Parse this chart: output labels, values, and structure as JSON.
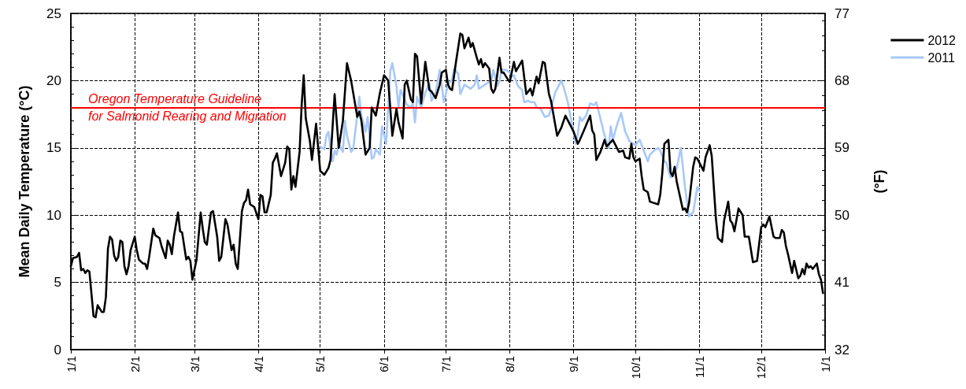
{
  "chart_data": {
    "type": "line",
    "ylabel": "Mean Daily Temperature (°C)",
    "y2label": "(°F)",
    "xlim": [
      "2012-01-01",
      "2013-01-01"
    ],
    "xticks": [
      {
        "value": "2012-01-01",
        "label": "1/1"
      },
      {
        "value": "2012-02-01",
        "label": "2/1"
      },
      {
        "value": "2012-03-01",
        "label": "3/1"
      },
      {
        "value": "2012-04-01",
        "label": "4/1"
      },
      {
        "value": "2012-05-01",
        "label": "5/1"
      },
      {
        "value": "2012-06-01",
        "label": "6/1"
      },
      {
        "value": "2012-07-01",
        "label": "7/1"
      },
      {
        "value": "2012-08-01",
        "label": "8/1"
      },
      {
        "value": "2012-09-01",
        "label": "9/1"
      },
      {
        "value": "2012-10-01",
        "label": "10/1"
      },
      {
        "value": "2012-11-01",
        "label": "11/1"
      },
      {
        "value": "2012-12-01",
        "label": "12/1"
      },
      {
        "value": "2013-01-01",
        "label": "1/1"
      }
    ],
    "ylim": [
      0,
      25
    ],
    "yticks": [
      0,
      5,
      10,
      15,
      20,
      25
    ],
    "y2lim": [
      32,
      77
    ],
    "y2ticks": [
      32,
      41,
      50,
      59,
      68,
      77
    ],
    "grid": true,
    "legend": "top right",
    "line_style": "solid",
    "marker": "none",
    "ref_lines": [
      {
        "axis": "y",
        "value": 18,
        "label": "Oregon Temperature Guideline\nfor Salmonid Rearing and Migration",
        "color": "#ff0000",
        "line_style": "solid"
      }
    ],
    "series": [
      {
        "name": "2012",
        "color": "#000000",
        "x": [
          "2012-01-01",
          "2012-01-02",
          "2012-01-04",
          "2012-01-05",
          "2012-01-06",
          "2012-01-07",
          "2012-01-08",
          "2012-01-09",
          "2012-01-10",
          "2012-01-12",
          "2012-01-13",
          "2012-01-14",
          "2012-01-16",
          "2012-01-17",
          "2012-01-18",
          "2012-01-19",
          "2012-01-20",
          "2012-01-21",
          "2012-01-22",
          "2012-01-23",
          "2012-01-24",
          "2012-01-25",
          "2012-01-26",
          "2012-01-27",
          "2012-01-28",
          "2012-01-29",
          "2012-01-30",
          "2012-02-01",
          "2012-02-02",
          "2012-02-03",
          "2012-02-05",
          "2012-02-06",
          "2012-02-07",
          "2012-02-08",
          "2012-02-10",
          "2012-02-11",
          "2012-02-13",
          "2012-02-14",
          "2012-02-16",
          "2012-02-17",
          "2012-02-18",
          "2012-02-19",
          "2012-02-20",
          "2012-02-22",
          "2012-02-23",
          "2012-02-24",
          "2012-02-26",
          "2012-02-27",
          "2012-02-28",
          "2012-02-29",
          "2012-03-02",
          "2012-03-04",
          "2012-03-05",
          "2012-03-06",
          "2012-03-07",
          "2012-03-09",
          "2012-03-10",
          "2012-03-12",
          "2012-03-13",
          "2012-03-14",
          "2012-03-16",
          "2012-03-17",
          "2012-03-19",
          "2012-03-20",
          "2012-03-21",
          "2012-03-22",
          "2012-03-24",
          "2012-03-25",
          "2012-03-26",
          "2012-03-27",
          "2012-03-28",
          "2012-03-30",
          "2012-04-01",
          "2012-04-02",
          "2012-04-03",
          "2012-04-04",
          "2012-04-05",
          "2012-04-07",
          "2012-04-08",
          "2012-04-09",
          "2012-04-10",
          "2012-04-12",
          "2012-04-14",
          "2012-04-15",
          "2012-04-16",
          "2012-04-17",
          "2012-04-18",
          "2012-04-19",
          "2012-04-21",
          "2012-04-22",
          "2012-04-23",
          "2012-04-24",
          "2012-04-26",
          "2012-04-27",
          "2012-04-29",
          "2012-05-01",
          "2012-05-03",
          "2012-05-05",
          "2012-05-06",
          "2012-05-08",
          "2012-05-10",
          "2012-05-12",
          "2012-05-14",
          "2012-05-16",
          "2012-05-19",
          "2012-05-20",
          "2012-05-21",
          "2012-05-23",
          "2012-05-25",
          "2012-05-26",
          "2012-05-28",
          "2012-05-30",
          "2012-06-01",
          "2012-06-03",
          "2012-06-05",
          "2012-06-07",
          "2012-06-08",
          "2012-06-10",
          "2012-06-11",
          "2012-06-12",
          "2012-06-14",
          "2012-06-15",
          "2012-06-16",
          "2012-06-17",
          "2012-06-19",
          "2012-06-21",
          "2012-06-23",
          "2012-06-24",
          "2012-06-26",
          "2012-06-28",
          "2012-06-29",
          "2012-07-01",
          "2012-07-02",
          "2012-07-03",
          "2012-07-04",
          "2012-07-06",
          "2012-07-08",
          "2012-07-09",
          "2012-07-10",
          "2012-07-12",
          "2012-07-13",
          "2012-07-14",
          "2012-07-16",
          "2012-07-17",
          "2012-07-18",
          "2012-07-19",
          "2012-07-20",
          "2012-07-22",
          "2012-07-23",
          "2012-07-24",
          "2012-07-25",
          "2012-07-27",
          "2012-07-28",
          "2012-07-29",
          "2012-07-31",
          "2012-08-01",
          "2012-08-03",
          "2012-08-04",
          "2012-08-07",
          "2012-08-09",
          "2012-08-11",
          "2012-08-12",
          "2012-08-14",
          "2012-08-15",
          "2012-08-17",
          "2012-08-18",
          "2012-08-20",
          "2012-08-21",
          "2012-08-24",
          "2012-08-26",
          "2012-08-28",
          "2012-08-31",
          "2012-09-01",
          "2012-09-03",
          "2012-09-04",
          "2012-09-06",
          "2012-09-09",
          "2012-09-10",
          "2012-09-11",
          "2012-09-12",
          "2012-09-14",
          "2012-09-16",
          "2012-09-17",
          "2012-09-20",
          "2012-09-22",
          "2012-09-23",
          "2012-09-25",
          "2012-09-26",
          "2012-09-28",
          "2012-09-29",
          "2012-09-30",
          "2012-10-01",
          "2012-10-03",
          "2012-10-04",
          "2012-10-05",
          "2012-10-07",
          "2012-10-08",
          "2012-10-12",
          "2012-10-13",
          "2012-10-14",
          "2012-10-15",
          "2012-10-17",
          "2012-10-18",
          "2012-10-19",
          "2012-10-20",
          "2012-10-21",
          "2012-10-24",
          "2012-10-25",
          "2012-10-26",
          "2012-10-27",
          "2012-10-29",
          "2012-10-30",
          "2012-10-31",
          "2012-11-03",
          "2012-11-04",
          "2012-11-06",
          "2012-11-07",
          "2012-11-09",
          "2012-11-10",
          "2012-11-12",
          "2012-11-13",
          "2012-11-15",
          "2012-11-16",
          "2012-11-17",
          "2012-11-18",
          "2012-11-20",
          "2012-11-22",
          "2012-11-23",
          "2012-11-24",
          "2012-11-25",
          "2012-11-27",
          "2012-11-29",
          "2012-12-01",
          "2012-12-02",
          "2012-12-03",
          "2012-12-05",
          "2012-12-07",
          "2012-12-08",
          "2012-12-10",
          "2012-12-11",
          "2012-12-12",
          "2012-12-13",
          "2012-12-14",
          "2012-12-16",
          "2012-12-17",
          "2012-12-19",
          "2012-12-20",
          "2012-12-21",
          "2012-12-22",
          "2012-12-23",
          "2012-12-24",
          "2012-12-25",
          "2012-12-26",
          "2012-12-28",
          "2012-12-29",
          "2012-12-30",
          "2012-12-31"
        ],
        "values": [
          6.2,
          6.8,
          6.9,
          7.2,
          5.9,
          6.0,
          5.7,
          5.9,
          5.8,
          2.5,
          2.4,
          3.3,
          2.8,
          2.8,
          3.9,
          7.5,
          8.4,
          8.2,
          7.0,
          6.6,
          6.9,
          8.1,
          8.0,
          6.2,
          5.6,
          6.2,
          7.4,
          8.4,
          7.4,
          6.7,
          6.4,
          6.4,
          6.0,
          6.9,
          9.0,
          8.5,
          8.3,
          7.7,
          6.8,
          8.1,
          7.8,
          7.1,
          8.4,
          10.2,
          8.8,
          8.7,
          6.7,
          6.9,
          6.6,
          5.2,
          6.7,
          10.2,
          9.0,
          8.0,
          7.8,
          10.2,
          10.3,
          8.4,
          6.6,
          6.9,
          9.7,
          9.3,
          7.4,
          7.8,
          6.4,
          6.0,
          10.3,
          10.9,
          11.1,
          11.9,
          10.8,
          10.6,
          9.7,
          11.5,
          11.4,
          10.2,
          10.2,
          11.5,
          13.9,
          14.2,
          14.6,
          12.9,
          13.9,
          15.1,
          14.9,
          11.9,
          12.9,
          12.1,
          14.7,
          18.2,
          20.4,
          17.2,
          15.5,
          14.1,
          16.8,
          13.3,
          13.0,
          13.5,
          14.1,
          19.0,
          15.0,
          17.0,
          21.3,
          20.0,
          17.3,
          17.7,
          17.0,
          14.5,
          15.0,
          18.0,
          17.4,
          19.1,
          20.4,
          20.0,
          15.9,
          17.9,
          16.9,
          15.7,
          19.7,
          20.0,
          18.6,
          18.4,
          22.0,
          21.8,
          18.3,
          21.4,
          19.3,
          19.2,
          18.7,
          19.7,
          20.6,
          20.8,
          19.7,
          19.4,
          19.3,
          21.5,
          23.5,
          23.4,
          22.4,
          23.2,
          22.5,
          22.8,
          21.7,
          21.2,
          21.6,
          21.0,
          21.3,
          20.9,
          19.4,
          19.1,
          19.4,
          21.7,
          20.6,
          20.6,
          20.1,
          19.9,
          21.4,
          20.7,
          21.5,
          19.0,
          19.4,
          18.9,
          20.3,
          19.8,
          21.4,
          21.3,
          19.0,
          18.5,
          15.9,
          16.5,
          17.4,
          16.5,
          16.2,
          15.3,
          15.6,
          16.3,
          17.4,
          16.3,
          16.0,
          14.1,
          14.7,
          15.6,
          15.1,
          15.6,
          15.0,
          14.7,
          14.8,
          14.3,
          14.2,
          15.3,
          14.3,
          14.0,
          14.2,
          12.9,
          11.9,
          11.7,
          11.0,
          10.8,
          11.5,
          13.1,
          15.3,
          15.6,
          13.2,
          12.9,
          13.6,
          12.5,
          10.4,
          10.5,
          10.2,
          10.9,
          13.6,
          14.3,
          14.2,
          13.3,
          14.3,
          15.2,
          14.4,
          9.8,
          8.3,
          8.0,
          9.6,
          11.0,
          9.6,
          9.4,
          8.8,
          10.5,
          10.0,
          8.4,
          8.4,
          8.4,
          6.5,
          6.6,
          9.1,
          9.3,
          9.1,
          9.9,
          8.4,
          8.3,
          8.3,
          8.9,
          8.7,
          7.7,
          7.1,
          5.7,
          6.6,
          5.3,
          5.5,
          6.0,
          5.6,
          6.4,
          6.1,
          6.2,
          6.0,
          6.4,
          5.6,
          5.2,
          4.2
        ]
      },
      {
        "name": "2011",
        "color": "#a8c8f8",
        "x": [
          "2012-05-01",
          "2012-05-03",
          "2012-05-04",
          "2012-05-05",
          "2012-05-06",
          "2012-05-07",
          "2012-05-08",
          "2012-05-09",
          "2012-05-10",
          "2012-05-12",
          "2012-05-13",
          "2012-05-14",
          "2012-05-16",
          "2012-05-17",
          "2012-05-20",
          "2012-05-21",
          "2012-05-23",
          "2012-05-24",
          "2012-05-26",
          "2012-05-27",
          "2012-05-28",
          "2012-05-30",
          "2012-05-31",
          "2012-06-02",
          "2012-06-04",
          "2012-06-05",
          "2012-06-07",
          "2012-06-08",
          "2012-06-09",
          "2012-06-11",
          "2012-06-12",
          "2012-06-14",
          "2012-06-15",
          "2012-06-16",
          "2012-06-17",
          "2012-06-19",
          "2012-06-21",
          "2012-06-23",
          "2012-06-24",
          "2012-06-26",
          "2012-06-28",
          "2012-06-30",
          "2012-07-02",
          "2012-07-04",
          "2012-07-05",
          "2012-07-07",
          "2012-07-08",
          "2012-07-10",
          "2012-07-13",
          "2012-07-15",
          "2012-07-16",
          "2012-07-17",
          "2012-07-20",
          "2012-07-23",
          "2012-07-24",
          "2012-07-26",
          "2012-07-27",
          "2012-07-28",
          "2012-07-30",
          "2012-08-01",
          "2012-08-02",
          "2012-08-03",
          "2012-08-05",
          "2012-08-07",
          "2012-08-08",
          "2012-08-10",
          "2012-08-11",
          "2012-08-13",
          "2012-08-14",
          "2012-08-16",
          "2012-08-18",
          "2012-08-20",
          "2012-08-21",
          "2012-08-23",
          "2012-08-24",
          "2012-08-26",
          "2012-08-27",
          "2012-08-29",
          "2012-08-31",
          "2012-09-02",
          "2012-09-03",
          "2012-09-04",
          "2012-09-05",
          "2012-09-07",
          "2012-09-09",
          "2012-09-11",
          "2012-09-12",
          "2012-09-13",
          "2012-09-16",
          "2012-09-18",
          "2012-09-19",
          "2012-09-20",
          "2012-09-22",
          "2012-09-24",
          "2012-09-26",
          "2012-09-27",
          "2012-09-28",
          "2012-10-01",
          "2012-10-03",
          "2012-10-06",
          "2012-10-07",
          "2012-10-08",
          "2012-10-10",
          "2012-10-12",
          "2012-10-13",
          "2012-10-15",
          "2012-10-16",
          "2012-10-18",
          "2012-10-19",
          "2012-10-21",
          "2012-10-23",
          "2012-10-25",
          "2012-10-27",
          "2012-10-28",
          "2012-10-29",
          "2012-10-31",
          "2012-11-01"
        ],
        "values": [
          15.1,
          14.9,
          15.9,
          16.2,
          15.0,
          14.0,
          14.8,
          14.5,
          15.3,
          14.7,
          17.0,
          15.9,
          14.7,
          14.9,
          18.8,
          17.4,
          16.2,
          17.3,
          14.2,
          14.3,
          14.9,
          14.5,
          16.6,
          15.3,
          20.7,
          21.3,
          19.6,
          18.0,
          19.3,
          18.6,
          18.2,
          18.0,
          18.3,
          16.9,
          18.8,
          18.0,
          19.1,
          19.8,
          18.5,
          19.1,
          20.8,
          18.4,
          19.7,
          20.1,
          20.9,
          20.5,
          19.0,
          19.7,
          19.4,
          19.7,
          20.4,
          19.4,
          19.7,
          20.0,
          20.8,
          19.6,
          20.0,
          20.8,
          20.8,
          20.6,
          20.3,
          20.4,
          19.6,
          19.3,
          18.4,
          18.5,
          18.4,
          18.4,
          18.0,
          17.9,
          17.3,
          17.4,
          17.9,
          19.1,
          19.4,
          20.0,
          19.6,
          18.5,
          16.9,
          15.3,
          16.0,
          17.3,
          17.0,
          17.4,
          18.3,
          18.2,
          18.4,
          17.8,
          15.9,
          15.0,
          16.6,
          15.6,
          16.7,
          17.6,
          16.2,
          15.9,
          15.5,
          15.2,
          15.6,
          14.4,
          14.0,
          14.5,
          14.8,
          15.0,
          14.8,
          14.0,
          13.9,
          12.8,
          12.9,
          13.5,
          15.0,
          12.1,
          9.9,
          10.1,
          10.2,
          12.1,
          11.8
        ]
      }
    ]
  }
}
